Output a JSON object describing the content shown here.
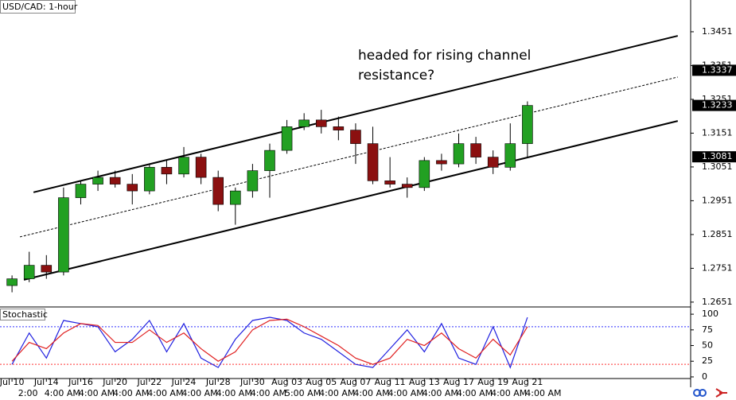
{
  "chart_data": [
    {
      "type": "candlestick",
      "title": "USD/CAD: 1-hour",
      "annotation": [
        "headed for rising channel",
        "resistance?"
      ],
      "x": [
        0,
        1,
        2,
        3,
        4,
        5,
        6,
        7,
        8,
        9,
        10,
        11,
        12,
        13,
        14,
        15,
        16,
        17,
        18,
        19,
        20,
        21,
        22,
        23,
        24,
        25,
        26,
        27,
        28,
        29,
        30
      ],
      "open": [
        1.27,
        1.272,
        1.276,
        1.274,
        1.296,
        1.3,
        1.302,
        1.3,
        1.298,
        1.305,
        1.303,
        1.308,
        1.302,
        1.294,
        1.298,
        1.304,
        1.31,
        1.317,
        1.319,
        1.317,
        1.316,
        1.312,
        1.301,
        1.3,
        1.299,
        1.307,
        1.306,
        1.312,
        1.308,
        1.305,
        1.312
      ],
      "high": [
        1.273,
        1.28,
        1.279,
        1.299,
        1.301,
        1.304,
        1.304,
        1.303,
        1.306,
        1.307,
        1.311,
        1.309,
        1.304,
        1.299,
        1.306,
        1.312,
        1.319,
        1.321,
        1.322,
        1.32,
        1.318,
        1.317,
        1.308,
        1.302,
        1.308,
        1.309,
        1.315,
        1.314,
        1.31,
        1.318,
        1.3245
      ],
      "low": [
        1.268,
        1.271,
        1.272,
        1.273,
        1.294,
        1.298,
        1.299,
        1.294,
        1.297,
        1.3,
        1.302,
        1.3,
        1.292,
        1.288,
        1.296,
        1.296,
        1.309,
        1.316,
        1.315,
        1.313,
        1.306,
        1.3,
        1.299,
        1.296,
        1.298,
        1.304,
        1.305,
        1.306,
        1.303,
        1.304,
        1.308
      ],
      "close": [
        1.272,
        1.276,
        1.274,
        1.296,
        1.3,
        1.302,
        1.3,
        1.298,
        1.305,
        1.303,
        1.308,
        1.302,
        1.294,
        1.298,
        1.304,
        1.31,
        1.317,
        1.319,
        1.317,
        1.316,
        1.312,
        1.301,
        1.3,
        1.299,
        1.307,
        1.306,
        1.312,
        1.308,
        1.305,
        1.312,
        1.3233
      ],
      "up_color": "#22a022",
      "down_color": "#8b1010",
      "lines": [
        {
          "x": [
            1.25,
            38.75
          ],
          "y": [
            1.2976,
            1.3439
          ],
          "style": "solid"
        },
        {
          "x": [
            0.46,
            38.75
          ],
          "y": [
            1.2844,
            1.3317
          ],
          "style": "dotted"
        },
        {
          "x": [
            0.69,
            38.75
          ],
          "y": [
            1.2717,
            1.3187
          ],
          "style": "solid"
        }
      ],
      "xlim": [
        -0.7,
        39.5
      ],
      "ylim": [
        1.2639,
        1.3545
      ],
      "yticks": [
        1.3451,
        1.3351,
        1.3251,
        1.3151,
        1.3051,
        1.2951,
        1.2851,
        1.2751,
        1.2651
      ],
      "price_markers": [
        1.3337,
        1.3233,
        1.3081
      ],
      "xticks": [
        {
          "value": 0,
          "label": "Jul 10"
        },
        {
          "value": 2,
          "label": "Jul 14"
        },
        {
          "value": 4,
          "label": "Jul 16"
        },
        {
          "value": 6,
          "label": "Jul 20"
        },
        {
          "value": 8,
          "label": "Jul 22"
        },
        {
          "value": 10,
          "label": "Jul 24"
        },
        {
          "value": 12,
          "label": "Jul 28"
        },
        {
          "value": 14,
          "label": "Jul 30"
        },
        {
          "value": 16,
          "label": "Aug 03"
        },
        {
          "value": 18,
          "label": "Aug 05"
        },
        {
          "value": 20,
          "label": "Aug 07"
        },
        {
          "value": 22,
          "label": "Aug 11"
        },
        {
          "value": 24,
          "label": "Aug 13"
        },
        {
          "value": 26,
          "label": "Aug 17"
        },
        {
          "value": 28,
          "label": "Aug 19"
        },
        {
          "value": 30,
          "label": "Aug 21"
        }
      ],
      "time_labels": [
        "2:00",
        "4:00 AM",
        "4:00 AM",
        "4:00 AM",
        "4:00 AM",
        "4:00 AM",
        "4:00 AM",
        "4:00 AM",
        "5:00 AM",
        "4:00 AM",
        "4:00 AM",
        "4:00 AM",
        "4:00 AM",
        "4:00 AM",
        "4:00 AM",
        "4:00 AM"
      ]
    },
    {
      "type": "line",
      "title": "Stochastic",
      "x": [
        0,
        1,
        2,
        3,
        4,
        5,
        6,
        7,
        8,
        9,
        10,
        11,
        12,
        13,
        14,
        15,
        16,
        17,
        18,
        19,
        20,
        21,
        22,
        23,
        24,
        25,
        26,
        27,
        28,
        29,
        30
      ],
      "series": [
        {
          "color": "#2020e0",
          "values": [
            20,
            70,
            30,
            90,
            85,
            80,
            40,
            60,
            90,
            40,
            85,
            30,
            15,
            60,
            90,
            95,
            90,
            70,
            60,
            40,
            20,
            15,
            45,
            75,
            40,
            85,
            30,
            20,
            80,
            15,
            95
          ]
        },
        {
          "color": "#e02020",
          "values": [
            25,
            55,
            45,
            70,
            85,
            82,
            55,
            55,
            75,
            55,
            70,
            45,
            25,
            40,
            75,
            90,
            92,
            80,
            65,
            50,
            30,
            20,
            30,
            60,
            50,
            70,
            45,
            30,
            60,
            35,
            80
          ]
        }
      ],
      "levels": [
        {
          "value": 80,
          "color": "#3030ff"
        },
        {
          "value": 20,
          "color": "#ff3030"
        }
      ],
      "ylim": [
        -14,
        109
      ],
      "yticks": [
        100,
        75,
        50,
        25,
        0
      ]
    }
  ]
}
